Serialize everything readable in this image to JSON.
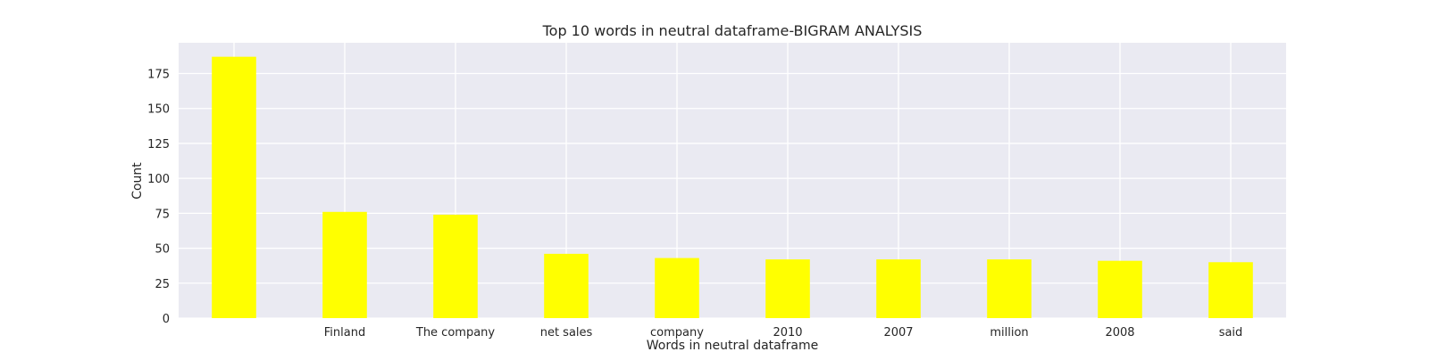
{
  "chart_data": {
    "type": "bar",
    "title": "Top 10 words in neutral dataframe-BIGRAM ANALYSIS",
    "xlabel": "Words in neutral dataframe",
    "ylabel": "Count",
    "categories": [
      "",
      "Finland",
      "The company",
      "net sales",
      "company",
      "2010",
      "2007",
      "million",
      "2008",
      "said"
    ],
    "values": [
      187,
      76,
      74,
      46,
      43,
      42,
      42,
      42,
      41,
      40
    ],
    "ylim": [
      0,
      197
    ],
    "yticks": [
      0,
      25,
      50,
      75,
      100,
      125,
      150,
      175
    ],
    "grid": true,
    "bar_color": "#ffff00",
    "plot_background": "#eaeaf2",
    "grid_color": "#ffffff"
  }
}
